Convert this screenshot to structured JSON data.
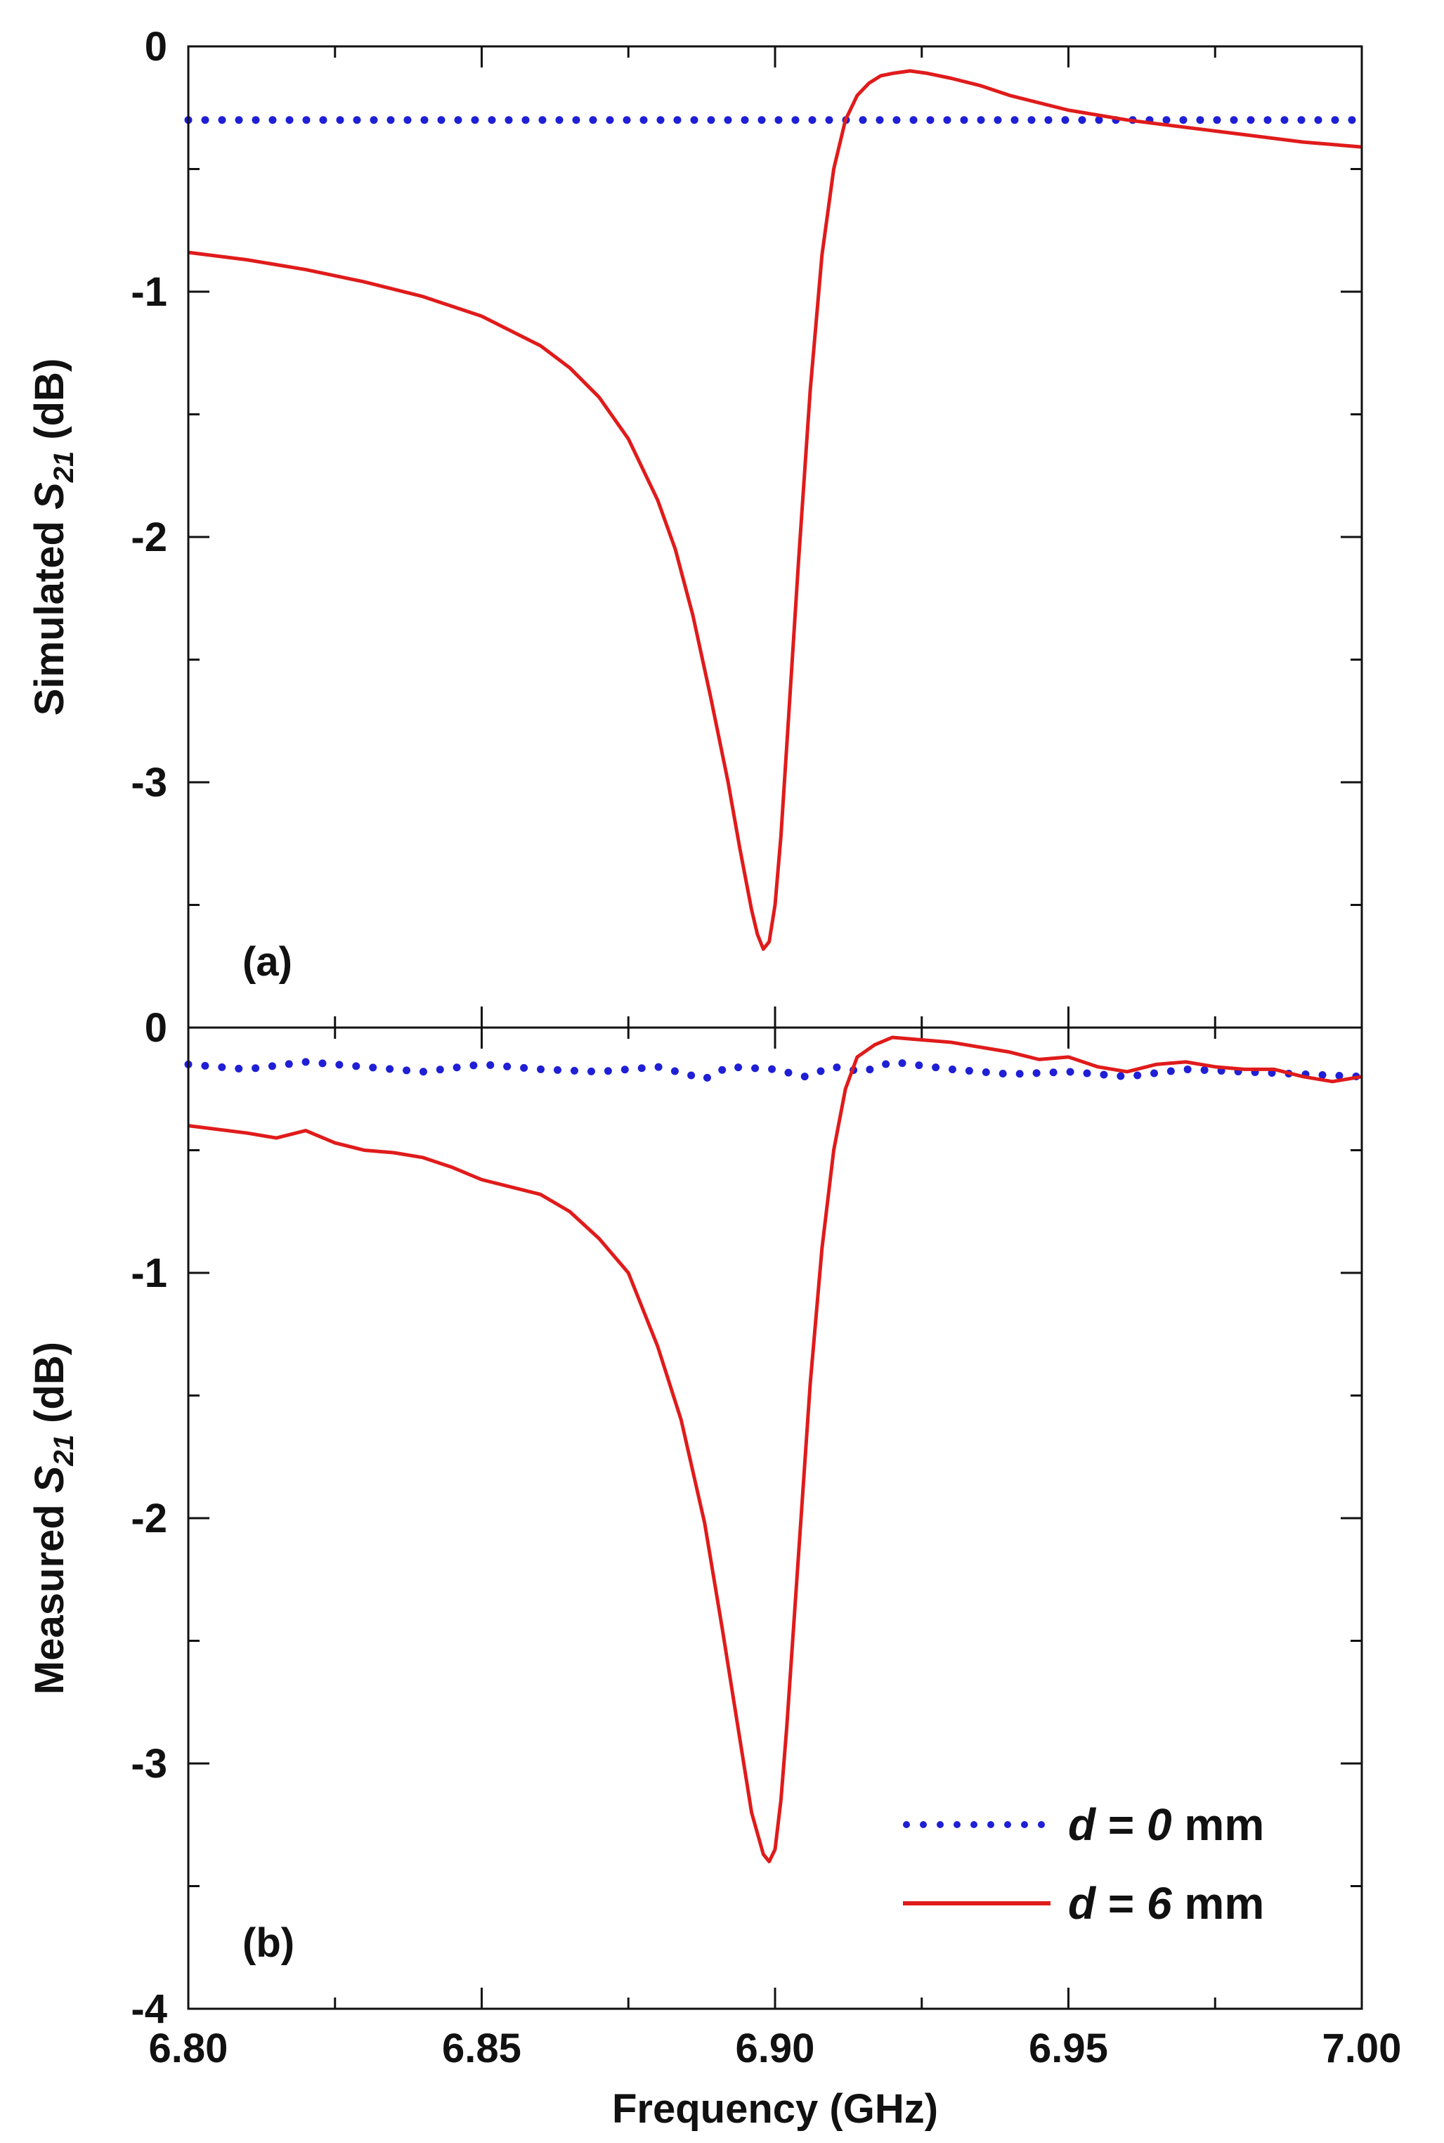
{
  "chart_data": [
    {
      "panel": "(a)",
      "type": "line",
      "ylabel": {
        "prefix": "Simulated ",
        "symbol": "S",
        "subscript": "21",
        "suffix": " (dB)"
      },
      "xlim": [
        6.8,
        7.0
      ],
      "ylim": [
        -4,
        0
      ],
      "yticks": [
        0,
        -1,
        -2,
        -3
      ],
      "ytick_labels": [
        "0",
        "-1",
        "-2",
        "-3"
      ],
      "series": [
        {
          "name": "d = 0 mm",
          "style": "dotted",
          "color": "#1f1fd6",
          "x": [
            6.8,
            6.85,
            6.9,
            6.95,
            7.0
          ],
          "y": [
            -0.3,
            -0.3,
            -0.3,
            -0.3,
            -0.3
          ]
        },
        {
          "name": "d = 6 mm",
          "style": "solid",
          "color": "#e01b1b",
          "x": [
            6.8,
            6.81,
            6.82,
            6.83,
            6.84,
            6.85,
            6.86,
            6.865,
            6.87,
            6.875,
            6.88,
            6.883,
            6.886,
            6.889,
            6.892,
            6.894,
            6.896,
            6.897,
            6.898,
            6.899,
            6.9,
            6.901,
            6.902,
            6.904,
            6.906,
            6.908,
            6.91,
            6.912,
            6.914,
            6.916,
            6.918,
            6.92,
            6.923,
            6.926,
            6.93,
            6.935,
            6.94,
            6.95,
            6.96,
            6.97,
            6.98,
            6.99,
            7.0
          ],
          "y": [
            -0.84,
            -0.87,
            -0.91,
            -0.96,
            -1.02,
            -1.1,
            -1.22,
            -1.31,
            -1.43,
            -1.6,
            -1.85,
            -2.05,
            -2.32,
            -2.65,
            -3.0,
            -3.27,
            -3.52,
            -3.62,
            -3.68,
            -3.65,
            -3.5,
            -3.22,
            -2.85,
            -2.1,
            -1.4,
            -0.85,
            -0.5,
            -0.3,
            -0.2,
            -0.15,
            -0.12,
            -0.11,
            -0.1,
            -0.11,
            -0.13,
            -0.16,
            -0.2,
            -0.26,
            -0.3,
            -0.33,
            -0.36,
            -0.39,
            -0.41
          ]
        }
      ]
    },
    {
      "panel": "(b)",
      "type": "line",
      "xlabel": "Frequency (GHz)",
      "ylabel": {
        "prefix": "Measured ",
        "symbol": "S",
        "subscript": "21",
        "suffix": " (dB)"
      },
      "xlim": [
        6.8,
        7.0
      ],
      "ylim": [
        -4,
        0
      ],
      "xticks": [
        6.8,
        6.85,
        6.9,
        6.95,
        7.0
      ],
      "xtick_labels": [
        "6.80",
        "6.85",
        "6.90",
        "6.95",
        "7.00"
      ],
      "yticks": [
        0,
        -1,
        -2,
        -3,
        -4
      ],
      "ytick_labels": [
        "0",
        "-1",
        "-2",
        "-3",
        "-4"
      ],
      "series": [
        {
          "name": "d = 0 mm",
          "style": "dotted",
          "color": "#1f1fd6",
          "x": [
            6.8,
            6.81,
            6.82,
            6.83,
            6.84,
            6.85,
            6.86,
            6.87,
            6.88,
            6.885,
            6.888,
            6.892,
            6.9,
            6.905,
            6.91,
            6.915,
            6.92,
            6.93,
            6.94,
            6.95,
            6.96,
            6.97,
            6.98,
            6.99,
            7.0
          ],
          "y": [
            -0.15,
            -0.17,
            -0.14,
            -0.16,
            -0.18,
            -0.15,
            -0.17,
            -0.18,
            -0.16,
            -0.19,
            -0.21,
            -0.16,
            -0.17,
            -0.2,
            -0.16,
            -0.18,
            -0.14,
            -0.17,
            -0.19,
            -0.18,
            -0.2,
            -0.17,
            -0.18,
            -0.19,
            -0.2
          ]
        },
        {
          "name": "d = 6 mm",
          "style": "solid",
          "color": "#e01b1b",
          "x": [
            6.8,
            6.81,
            6.815,
            6.82,
            6.825,
            6.83,
            6.835,
            6.84,
            6.845,
            6.85,
            6.855,
            6.86,
            6.865,
            6.87,
            6.875,
            6.88,
            6.884,
            6.888,
            6.891,
            6.894,
            6.896,
            6.898,
            6.899,
            6.9,
            6.901,
            6.902,
            6.904,
            6.906,
            6.908,
            6.91,
            6.912,
            6.914,
            6.917,
            6.92,
            6.925,
            6.93,
            6.935,
            6.94,
            6.945,
            6.95,
            6.955,
            6.96,
            6.965,
            6.97,
            6.975,
            6.98,
            6.985,
            6.99,
            6.995,
            7.0
          ],
          "y": [
            -0.4,
            -0.43,
            -0.45,
            -0.42,
            -0.47,
            -0.5,
            -0.51,
            -0.53,
            -0.57,
            -0.62,
            -0.65,
            -0.68,
            -0.75,
            -0.86,
            -1.0,
            -1.3,
            -1.6,
            -2.02,
            -2.45,
            -2.9,
            -3.2,
            -3.37,
            -3.4,
            -3.35,
            -3.15,
            -2.85,
            -2.15,
            -1.45,
            -0.9,
            -0.5,
            -0.25,
            -0.12,
            -0.07,
            -0.04,
            -0.05,
            -0.06,
            -0.08,
            -0.1,
            -0.13,
            -0.12,
            -0.16,
            -0.18,
            -0.15,
            -0.14,
            -0.16,
            -0.17,
            -0.17,
            -0.2,
            -0.22,
            -0.2
          ]
        }
      ]
    }
  ],
  "legend": {
    "placement": "bottom-right of panel (b)",
    "entries": [
      {
        "var": "d",
        "eq": " = ",
        "value": "0",
        "unit": " mm",
        "style": "dotted",
        "color": "#1f1fd6"
      },
      {
        "var": "d",
        "eq": " = ",
        "value": "6",
        "unit": " mm",
        "style": "solid",
        "color": "#e01b1b"
      }
    ]
  }
}
